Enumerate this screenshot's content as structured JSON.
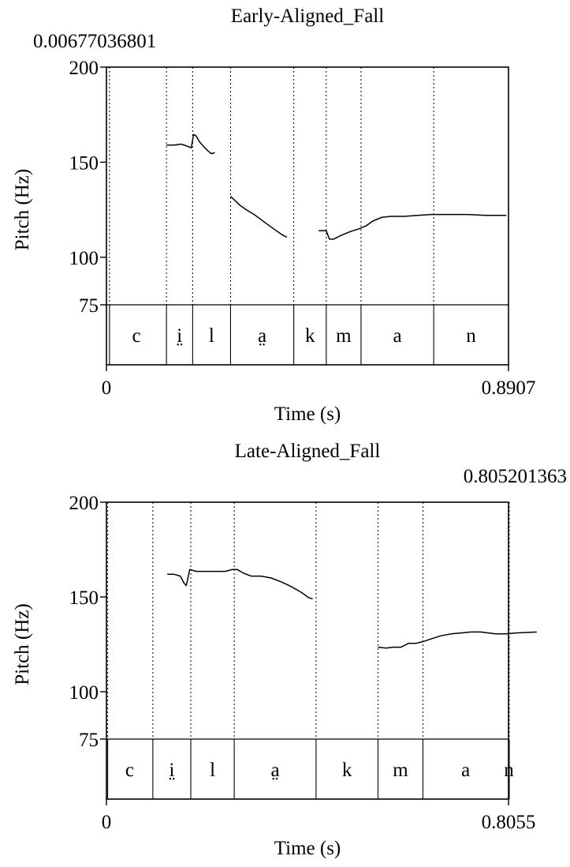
{
  "chart_data": [
    {
      "type": "line",
      "title": "Early-Aligned_Fall",
      "cursor_label": "0.00677036801",
      "xlabel": "Time (s)",
      "ylabel": "Pitch (Hz)",
      "x_tick_labels": [
        "0",
        "0.8907"
      ],
      "xlim": [
        0,
        0.8907
      ],
      "ylim": [
        75,
        200
      ],
      "y_tick_labels": [
        "75",
        "100",
        "150",
        "200"
      ],
      "y_ticks": [
        75,
        100,
        150,
        200
      ],
      "cursor_time": 0.00677036801,
      "boundaries": [
        0.00677,
        0.133,
        0.191,
        0.275,
        0.415,
        0.487,
        0.564,
        0.725
      ],
      "segments": [
        {
          "label": "c",
          "start": 0.0,
          "end": 0.133
        },
        {
          "label": "i̤",
          "start": 0.133,
          "end": 0.191
        },
        {
          "label": "l",
          "start": 0.191,
          "end": 0.275
        },
        {
          "label": "a̤",
          "start": 0.275,
          "end": 0.415
        },
        {
          "label": "k",
          "start": 0.415,
          "end": 0.487
        },
        {
          "label": "m",
          "start": 0.487,
          "end": 0.564
        },
        {
          "label": "a",
          "start": 0.564,
          "end": 0.725
        },
        {
          "label": "n",
          "start": 0.725,
          "end": 0.8907
        }
      ],
      "series": [
        {
          "values": [
            [
              0.133,
              159
            ],
            [
              0.15,
              159
            ],
            [
              0.165,
              159.5
            ],
            [
              0.178,
              158.5
            ],
            [
              0.188,
              157.5
            ],
            [
              0.193,
              164.5
            ],
            [
              0.198,
              164
            ],
            [
              0.207,
              160.5
            ],
            [
              0.22,
              157
            ],
            [
              0.232,
              154.5
            ],
            [
              0.24,
              155
            ]
          ]
        },
        {
          "values": [
            [
              0.275,
              132
            ],
            [
              0.282,
              130.5
            ],
            [
              0.295,
              127.5
            ],
            [
              0.31,
              125
            ],
            [
              0.33,
              122
            ],
            [
              0.35,
              118.5
            ],
            [
              0.37,
              115
            ],
            [
              0.388,
              112
            ],
            [
              0.4,
              110.5
            ]
          ]
        },
        {
          "values": [
            [
              0.47,
              114
            ],
            [
              0.48,
              114
            ],
            [
              0.487,
              114
            ],
            [
              0.494,
              109.5
            ],
            [
              0.503,
              109.5
            ],
            [
              0.52,
              111.5
            ],
            [
              0.54,
              113.5
            ],
            [
              0.56,
              115
            ],
            [
              0.575,
              116.5
            ],
            [
              0.59,
              119
            ],
            [
              0.61,
              121
            ],
            [
              0.63,
              121.5
            ],
            [
              0.66,
              121.5
            ],
            [
              0.69,
              122
            ],
            [
              0.72,
              122.5
            ],
            [
              0.76,
              122.5
            ],
            [
              0.8,
              122.5
            ],
            [
              0.84,
              122
            ],
            [
              0.886,
              122
            ]
          ]
        }
      ]
    },
    {
      "type": "line",
      "title": "Late-Aligned_Fall",
      "cursor_label": "0.805201363",
      "xlabel": "Time (s)",
      "ylabel": "Pitch (Hz)",
      "x_tick_labels": [
        "0",
        "0.8055"
      ],
      "xlim": [
        0,
        0.8055
      ],
      "ylim": [
        75,
        200
      ],
      "y_tick_labels": [
        "75",
        "100",
        "150",
        "200"
      ],
      "y_ticks": [
        75,
        100,
        150,
        200
      ],
      "cursor_time": 0.805201363,
      "boundaries": [
        0.0025,
        0.093,
        0.169,
        0.256,
        0.42,
        0.544,
        0.634,
        0.807
      ],
      "segments": [
        {
          "label": "c",
          "start": 0.0,
          "end": 0.093
        },
        {
          "label": "i̤",
          "start": 0.093,
          "end": 0.169
        },
        {
          "label": "l",
          "start": 0.169,
          "end": 0.256
        },
        {
          "label": "a̤",
          "start": 0.256,
          "end": 0.42
        },
        {
          "label": "k",
          "start": 0.42,
          "end": 0.544
        },
        {
          "label": "m",
          "start": 0.544,
          "end": 0.634
        },
        {
          "label": "a",
          "start": 0.634,
          "end": 0.807
        },
        {
          "label": "n",
          "start": 0.807,
          "end": 0.8055
        }
      ],
      "series": [
        {
          "values": [
            [
              0.122,
              162
            ],
            [
              0.135,
              162
            ],
            [
              0.148,
              161
            ],
            [
              0.155,
              157.5
            ],
            [
              0.16,
              156
            ],
            [
              0.167,
              164.5
            ],
            [
              0.18,
              163.5
            ],
            [
              0.2,
              163.5
            ],
            [
              0.22,
              163.5
            ],
            [
              0.238,
              163.5
            ],
            [
              0.252,
              164.5
            ],
            [
              0.262,
              164.5
            ],
            [
              0.275,
              162.5
            ],
            [
              0.29,
              161
            ],
            [
              0.31,
              161
            ],
            [
              0.33,
              160
            ],
            [
              0.35,
              158
            ],
            [
              0.37,
              155.5
            ],
            [
              0.39,
              152.5
            ],
            [
              0.406,
              149.5
            ],
            [
              0.413,
              149
            ]
          ]
        },
        {
          "values": [
            [
              0.544,
              123.5
            ],
            [
              0.56,
              123
            ],
            [
              0.575,
              123.5
            ],
            [
              0.59,
              123.5
            ],
            [
              0.605,
              125.5
            ],
            [
              0.62,
              125.5
            ],
            [
              0.635,
              126.5
            ],
            [
              0.652,
              128
            ],
            [
              0.67,
              129.5
            ],
            [
              0.69,
              130.5
            ],
            [
              0.71,
              131
            ],
            [
              0.73,
              131.5
            ],
            [
              0.75,
              131.5
            ],
            [
              0.78,
              130.5
            ],
            [
              0.8,
              130.5
            ],
            [
              0.82,
              131
            ],
            [
              0.862,
              131.5
            ]
          ]
        }
      ]
    }
  ]
}
